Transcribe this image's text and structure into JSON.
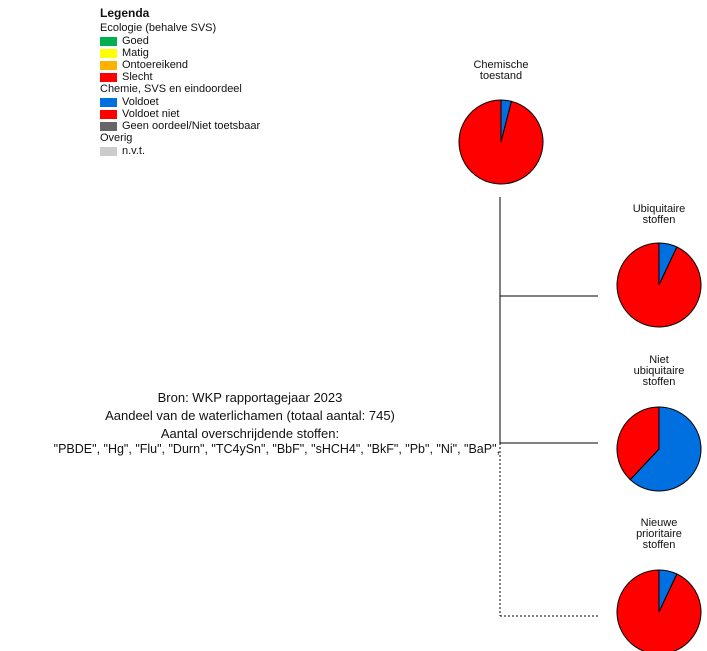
{
  "legend": {
    "title": "Legenda",
    "groups": [
      {
        "heading": "Ecologie (behalve SVS)",
        "items": [
          {
            "label": "Goed",
            "color": "#00b050"
          },
          {
            "label": "Matig",
            "color": "#ffff00"
          },
          {
            "label": "Ontoereikend",
            "color": "#ffb000"
          },
          {
            "label": "Slecht",
            "color": "#ff0000"
          }
        ]
      },
      {
        "heading": "Chemie, SVS en eindoordeel",
        "items": [
          {
            "label": "Voldoet",
            "color": "#0070e0"
          },
          {
            "label": "Voldoet niet",
            "color": "#ff0000"
          },
          {
            "label": "Geen oordeel/Niet toetsbaar",
            "color": "#666666"
          }
        ]
      },
      {
        "heading": "Overig",
        "items": [
          {
            "label": "n.v.t.",
            "color": "#cccccc"
          }
        ]
      }
    ]
  },
  "info": {
    "source": "Bron: WKP rapportagejaar 2023",
    "share": "Aandeel van de waterlichamen (totaal aantal: 745)",
    "exceedances": "Aantal overschrijdende stoffen:",
    "substances": "\"PBDE\", \"Hg\", \"Flu\", \"Durn\", \"TC4ySn\", \"BbF\", \"sHCH4\", \"BkF\", \"Pb\", \"Ni\", \"BaP\","
  },
  "chart_data": {
    "type": "pie",
    "series": [
      {
        "labels": [
          "Chemische",
          "toestand"
        ],
        "slices": [
          {
            "category": "Voldoet",
            "value": 0.04,
            "color": "#0070e0"
          },
          {
            "category": "Voldoet niet",
            "value": 0.96,
            "color": "#ff0000"
          }
        ]
      },
      {
        "labels": [
          "Ubiquitaire",
          "stoffen"
        ],
        "slices": [
          {
            "category": "Voldoet",
            "value": 0.07,
            "color": "#0070e0"
          },
          {
            "category": "Voldoet niet",
            "value": 0.93,
            "color": "#ff0000"
          }
        ]
      },
      {
        "labels": [
          "Niet",
          "ubiquitaire",
          "stoffen"
        ],
        "slices": [
          {
            "category": "Voldoet",
            "value": 0.62,
            "color": "#0070e0"
          },
          {
            "category": "Voldoet niet",
            "value": 0.38,
            "color": "#ff0000"
          }
        ]
      },
      {
        "labels": [
          "Nieuwe",
          "prioritaire",
          "stoffen"
        ],
        "slices": [
          {
            "category": "Voldoet",
            "value": 0.07,
            "color": "#0070e0"
          },
          {
            "category": "Voldoet niet",
            "value": 0.93,
            "color": "#ff0000"
          }
        ]
      }
    ]
  }
}
